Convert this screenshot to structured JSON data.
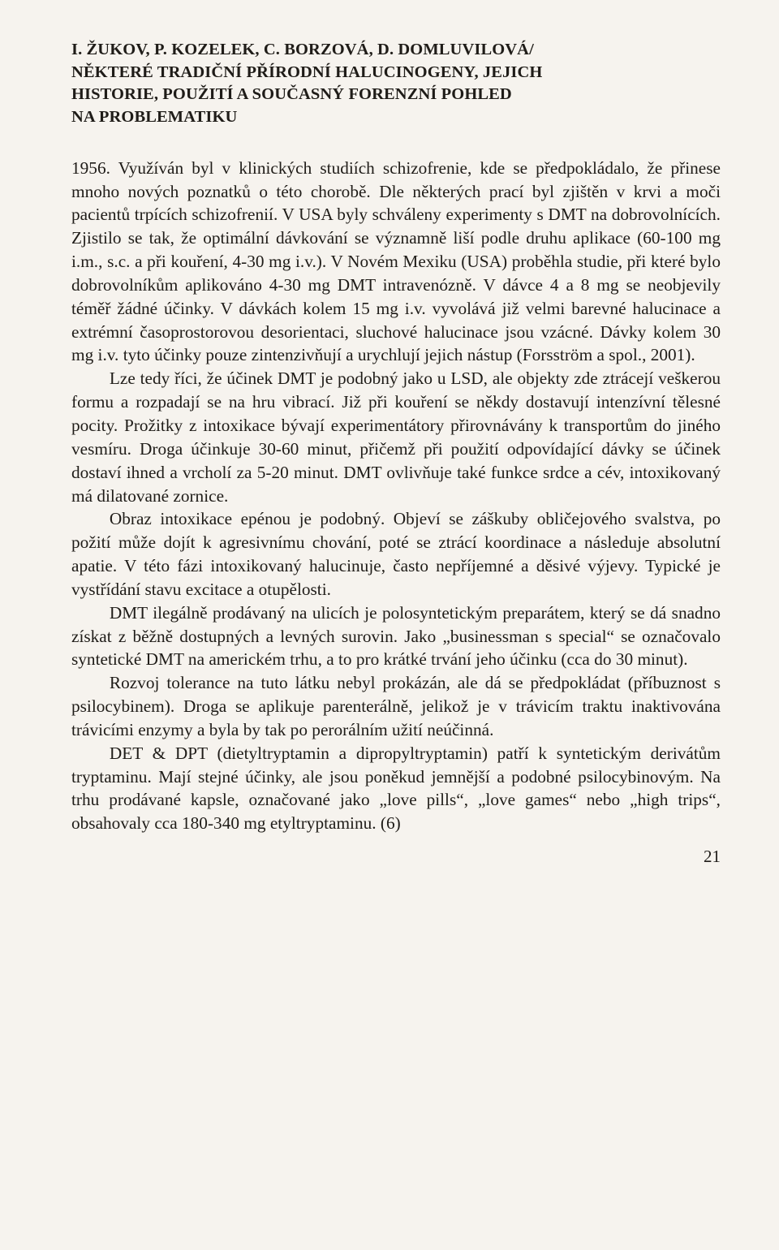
{
  "header": {
    "line1": "I. ŽUKOV, P. KOZELEK, C. BORZOVÁ, D. DOMLUVILOVÁ/",
    "line2": "NĚKTERÉ TRADIČNÍ PŘÍRODNÍ HALUCINOGENY, JEJICH",
    "line3": "HISTORIE, POUŽITÍ A SOUČASNÝ FORENZNÍ POHLED",
    "line4": "NA PROBLEMATIKU"
  },
  "paragraphs": {
    "p1": "1956. Využíván byl v klinických studiích schizofrenie, kde se předpokládalo, že přinese mnoho nových poznatků o této chorobě. Dle některých prací byl zjištěn v krvi a moči pacientů trpících schizofrenií. V USA byly schváleny experimenty s DMT na dobrovolnících. Zjistilo se tak, že optimální dávkování se významně liší podle druhu aplikace (60-100 mg i.m., s.c. a při kouření, 4-30 mg i.v.). V Novém Mexiku (USA) proběhla studie, při které bylo dobrovolníkům aplikováno 4-30 mg DMT intravenózně. V dávce 4 a 8 mg se neobjevily téměř žádné účinky. V dávkách kolem 15 mg i.v. vyvolává již velmi barevné halucinace a extrémní časoprostorovou desorientaci, sluchové halucinace jsou vzácné. Dávky kolem 30 mg i.v. tyto účinky pouze zintenzivňují a urychlují jejich nástup (Forsström a spol., 2001).",
    "p2": "Lze tedy říci, že účinek DMT je podobný jako u LSD, ale objekty zde ztrácejí veškerou formu a rozpadají se na hru vibrací. Již při kouření se někdy dostavují intenzívní tělesné pocity. Prožitky z intoxikace bývají experimentátory přirovnávány k transportům do jiného vesmíru. Droga účinkuje 30-60 minut, přičemž při použití odpovídající dávky se účinek dostaví ihned a vrcholí za 5-20 minut. DMT ovlivňuje také funkce srdce a cév, intoxikovaný má dilatované zornice.",
    "p3": "Obraz intoxikace epénou je podobný. Objeví se záškuby obličejového svalstva, po požití může dojít k agresivnímu chování, poté se ztrácí koordinace a následuje absolutní apatie. V této fázi intoxikovaný halucinuje, často nepříjemné a děsivé výjevy. Typické je vystřídání stavu excitace a otupělosti.",
    "p4": "DMT ilegálně prodávaný na ulicích je polosyntetickým preparátem, který se dá snadno získat z běžně dostupných a levných surovin. Jako „businessman s special“ se označovalo syntetické DMT na americkém trhu, a to pro krátké trvání jeho účinku (cca do 30 minut).",
    "p5": "Rozvoj tolerance na tuto látku nebyl prokázán, ale dá se předpokládat (příbuznost s psilocybinem). Droga se aplikuje parenterálně, jelikož je v trávicím traktu inaktivována trávicími enzymy a byla by tak po perorálním užití neúčinná.",
    "p6": "DET & DPT (dietyltryptamin a dipropyltryptamin) patří k syntetickým derivátům tryptaminu. Mají stejné účinky, ale jsou poněkud jemnější a podobné psilocybinovým. Na trhu prodávané kapsle, označované jako „love pills“, „love games“ nebo „high trips“, obsahovaly cca 180-340 mg etyltryptaminu. (6)"
  },
  "pageNumber": "21"
}
